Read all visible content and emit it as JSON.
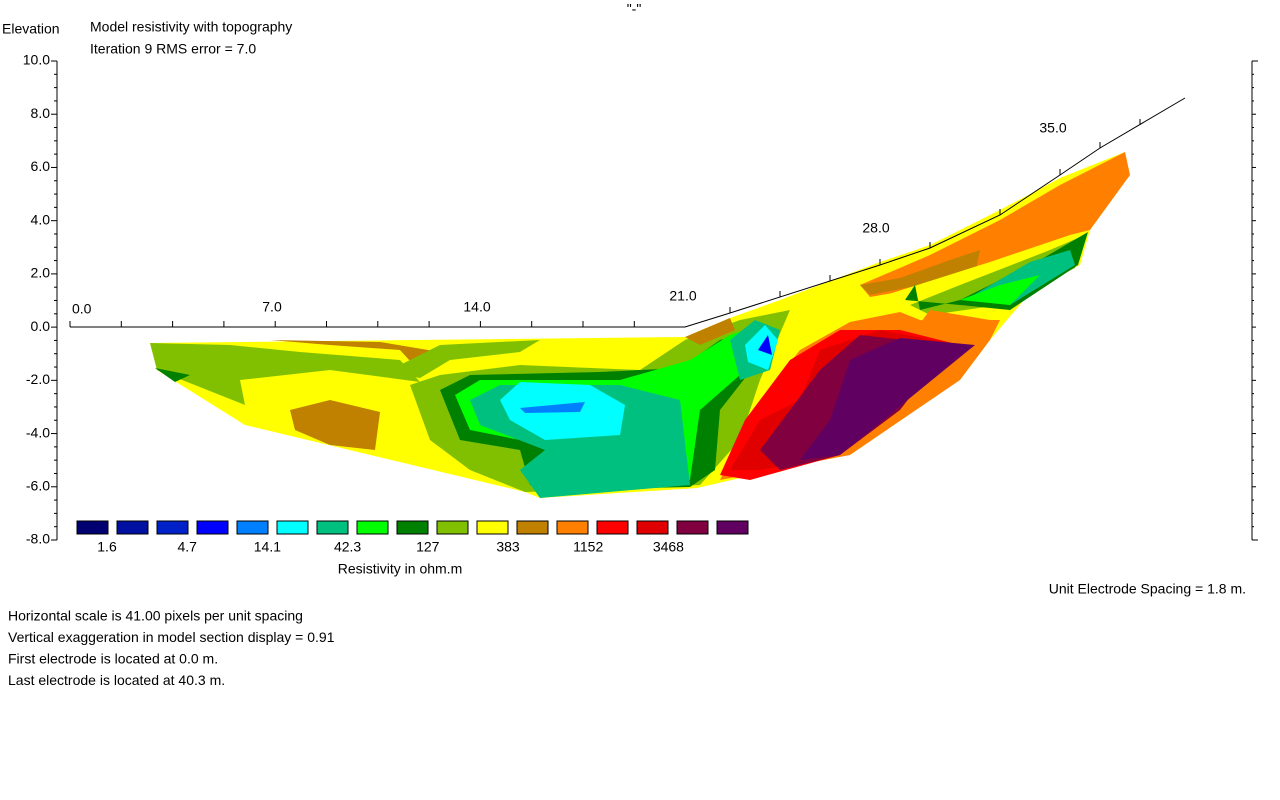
{
  "header": {
    "center_mark": "\"-\"",
    "y_axis_title": "Elevation",
    "title": "Model resistivity with topography",
    "subtitle": "Iteration 9 RMS error = 7.0"
  },
  "y_axis": {
    "ticks": [
      "10.0",
      "8.0",
      "6.0",
      "4.0",
      "2.0",
      "0.0",
      "-2.0",
      "-4.0",
      "-6.0",
      "-8.0"
    ]
  },
  "x_axis": {
    "ticks": [
      "0.0",
      "7.0",
      "14.0",
      "21.0",
      "28.0",
      "35.0"
    ]
  },
  "legend": {
    "colors": [
      "#000070",
      "#0010a0",
      "#0020c8",
      "#0000ff",
      "#0080ff",
      "#00ffff",
      "#00c080",
      "#00ff00",
      "#008000",
      "#80c000",
      "#ffff00",
      "#c08000",
      "#ff8000",
      "#ff0000",
      "#e00000",
      "#800040",
      "#600060"
    ],
    "labels": [
      "1.6",
      "4.7",
      "14.1",
      "42.3",
      "127",
      "383",
      "1152",
      "3468"
    ],
    "title": "Resistivity in ohm.m"
  },
  "unit_spacing": "Unit Electrode Spacing = 1.8 m.",
  "notes": [
    "Horizontal scale is 41.00 pixels per unit spacing",
    "Vertical exaggeration in model section display = 0.91",
    "First electrode is located at 0.0  m.",
    "Last electrode is located at 40.3 m."
  ]
}
